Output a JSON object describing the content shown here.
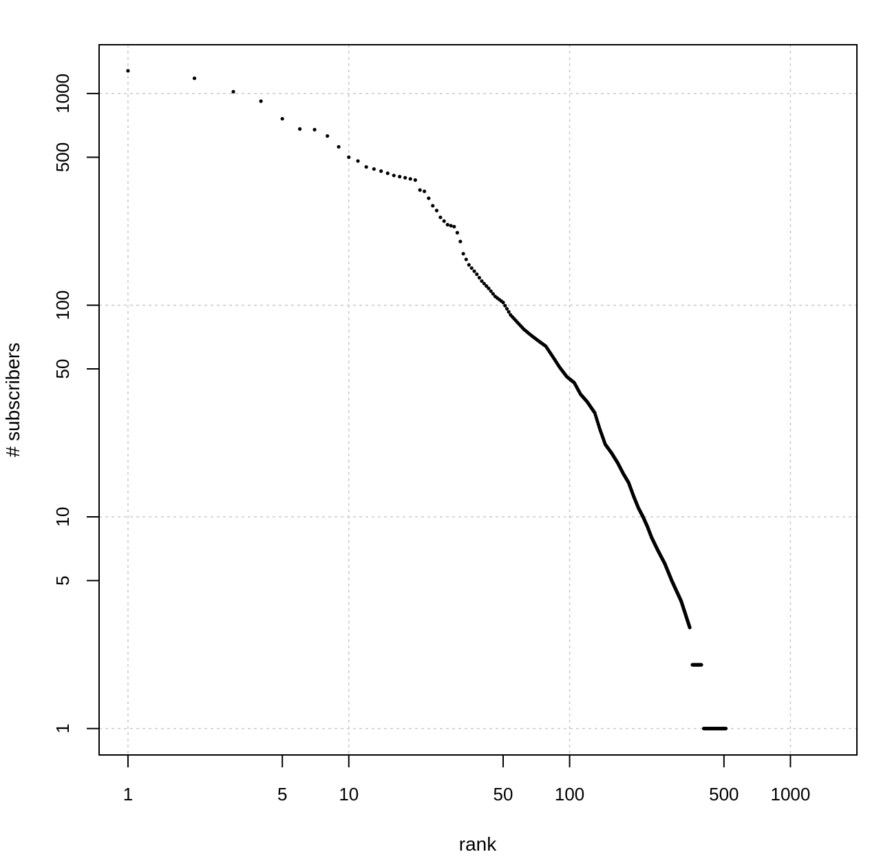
{
  "chart_data": {
    "type": "scatter",
    "title": "",
    "xlabel": "rank",
    "ylabel": "# subscribers",
    "x_scale": "log",
    "y_scale": "log",
    "xlim": [
      0.74,
      2000
    ],
    "ylim": [
      0.75,
      1700
    ],
    "grid": true,
    "x_ticks": [
      {
        "value": 1,
        "label": "1"
      },
      {
        "value": 5,
        "label": "5"
      },
      {
        "value": 10,
        "label": "10"
      },
      {
        "value": 50,
        "label": "50"
      },
      {
        "value": 100,
        "label": "100"
      },
      {
        "value": 500,
        "label": "500"
      },
      {
        "value": 1000,
        "label": "1000"
      }
    ],
    "y_ticks": [
      {
        "value": 1,
        "label": "1"
      },
      {
        "value": 5,
        "label": "5"
      },
      {
        "value": 10,
        "label": "10"
      },
      {
        "value": 50,
        "label": "50"
      },
      {
        "value": 100,
        "label": "100"
      },
      {
        "value": 500,
        "label": "500"
      },
      {
        "value": 1000,
        "label": "1000"
      }
    ],
    "grid_x": [
      1,
      10,
      100,
      1000
    ],
    "grid_y": [
      1,
      10,
      100,
      1000
    ],
    "series": [
      {
        "anchors": [
          [
            1,
            1280
          ],
          [
            2,
            1180
          ],
          [
            3,
            1020
          ],
          [
            4,
            920
          ],
          [
            5,
            760
          ],
          [
            6,
            680
          ],
          [
            7,
            675
          ],
          [
            8,
            630
          ],
          [
            9,
            560
          ],
          [
            10,
            500
          ],
          [
            11,
            480
          ],
          [
            12,
            450
          ],
          [
            13,
            440
          ],
          [
            14,
            430
          ],
          [
            15,
            420
          ],
          [
            16,
            410
          ],
          [
            17,
            405
          ],
          [
            18,
            400
          ],
          [
            19,
            395
          ],
          [
            20,
            390
          ],
          [
            21,
            350
          ],
          [
            22,
            345
          ],
          [
            23,
            320
          ],
          [
            24,
            295
          ],
          [
            25,
            280
          ],
          [
            26,
            260
          ],
          [
            28,
            240
          ],
          [
            30,
            235
          ],
          [
            31,
            220
          ],
          [
            32,
            200
          ],
          [
            33,
            175
          ],
          [
            35,
            155
          ],
          [
            38,
            140
          ],
          [
            40,
            130
          ],
          [
            43,
            120
          ],
          [
            46,
            110
          ],
          [
            50,
            103
          ],
          [
            54,
            90
          ],
          [
            58,
            83
          ],
          [
            62,
            77
          ],
          [
            67,
            72
          ],
          [
            72,
            68
          ],
          [
            78,
            64
          ],
          [
            84,
            57
          ],
          [
            90,
            51
          ],
          [
            97,
            46
          ],
          [
            105,
            43
          ],
          [
            112,
            38
          ],
          [
            120,
            35
          ],
          [
            130,
            31
          ],
          [
            137,
            26
          ],
          [
            145,
            22
          ],
          [
            155,
            20
          ],
          [
            165,
            18
          ],
          [
            175,
            16
          ],
          [
            185,
            14.5
          ],
          [
            195,
            12.5
          ],
          [
            205,
            11
          ],
          [
            215,
            10
          ],
          [
            225,
            9
          ],
          [
            235,
            8
          ],
          [
            250,
            7
          ],
          [
            270,
            6
          ],
          [
            290,
            5
          ],
          [
            320,
            4
          ],
          [
            350,
            3
          ]
        ],
        "runs": [
          {
            "y": 2,
            "from": 360,
            "to": 395
          },
          {
            "y": 1,
            "from": 405,
            "to": 510
          }
        ]
      }
    ]
  }
}
